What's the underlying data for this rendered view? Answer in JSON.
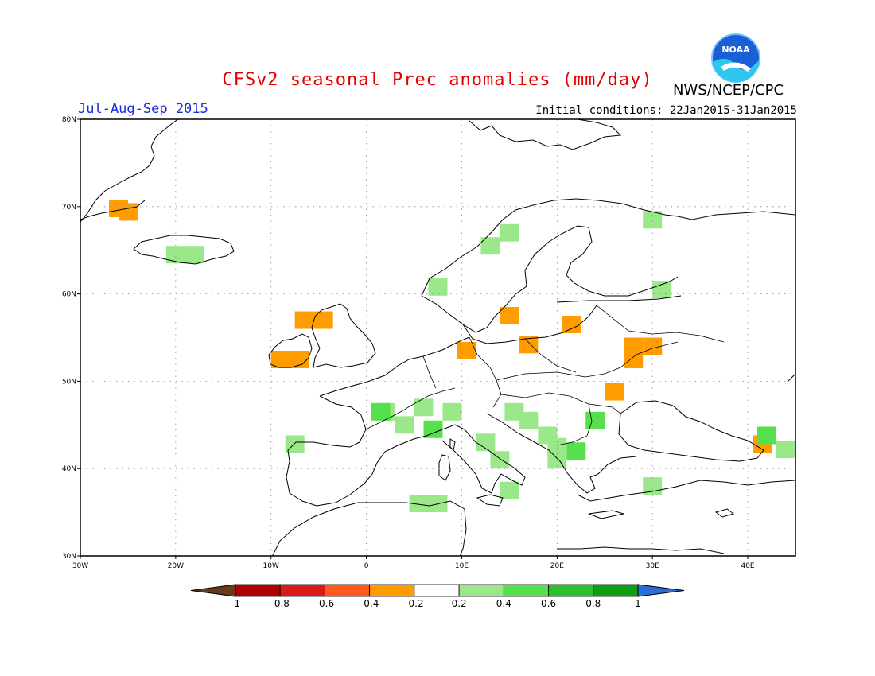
{
  "header": {
    "title": "CFSv2 seasonal Prec anomalies (mm/day)",
    "period": "Jul-Aug-Sep 2015",
    "initial_conditions": "Initial conditions: 22Jan2015-31Jan2015",
    "agency": "NWS/NCEP/CPC",
    "logo_text": "NOAA"
  },
  "map": {
    "lon_range": [
      -30,
      45
    ],
    "lat_range": [
      30,
      80
    ],
    "lon_ticks": [
      {
        "value": -30,
        "label": "30W"
      },
      {
        "value": -20,
        "label": "20W"
      },
      {
        "value": -10,
        "label": "10W"
      },
      {
        "value": 0,
        "label": "0"
      },
      {
        "value": 10,
        "label": "10E"
      },
      {
        "value": 20,
        "label": "20E"
      },
      {
        "value": 30,
        "label": "30E"
      },
      {
        "value": 40,
        "label": "40E"
      }
    ],
    "lat_ticks": [
      {
        "value": 30,
        "label": "30N"
      },
      {
        "value": 40,
        "label": "40N"
      },
      {
        "value": 50,
        "label": "50N"
      },
      {
        "value": 60,
        "label": "60N"
      },
      {
        "value": 70,
        "label": "70N"
      },
      {
        "value": 80,
        "label": "80N"
      }
    ],
    "anomaly_cells": [
      {
        "lon": -26,
        "lat": 69.8,
        "value": -0.35
      },
      {
        "lon": -25,
        "lat": 69.4,
        "value": -0.35
      },
      {
        "lon": -20,
        "lat": 64.5,
        "value": 0.25
      },
      {
        "lon": -18,
        "lat": 64.5,
        "value": 0.25
      },
      {
        "lon": -9,
        "lat": 52.5,
        "value": -0.35
      },
      {
        "lon": -7,
        "lat": 52.5,
        "value": -0.35
      },
      {
        "lon": -6.5,
        "lat": 57,
        "value": -0.35
      },
      {
        "lon": -4.5,
        "lat": 57,
        "value": -0.35
      },
      {
        "lon": 15,
        "lat": 57.5,
        "value": -0.35
      },
      {
        "lon": 10.5,
        "lat": 53.5,
        "value": -0.35
      },
      {
        "lon": 17,
        "lat": 54.2,
        "value": -0.35
      },
      {
        "lon": 21.5,
        "lat": 56.5,
        "value": -0.35
      },
      {
        "lon": 28,
        "lat": 54,
        "value": -0.35
      },
      {
        "lon": 30,
        "lat": 54,
        "value": -0.35
      },
      {
        "lon": 28,
        "lat": 52.5,
        "value": -0.35
      },
      {
        "lon": 26,
        "lat": 48.8,
        "value": -0.35
      },
      {
        "lon": 41.5,
        "lat": 42.8,
        "value": -0.35
      },
      {
        "lon": 13,
        "lat": 65.5,
        "value": 0.25
      },
      {
        "lon": 15,
        "lat": 67,
        "value": 0.25
      },
      {
        "lon": 30,
        "lat": 68.5,
        "value": 0.25
      },
      {
        "lon": 31,
        "lat": 60.5,
        "value": 0.25
      },
      {
        "lon": 7.5,
        "lat": 60.8,
        "value": 0.25
      },
      {
        "lon": 2,
        "lat": 46.5,
        "value": 0.3
      },
      {
        "lon": 1.5,
        "lat": 46.5,
        "value": 0.5
      },
      {
        "lon": 4,
        "lat": 45,
        "value": 0.3
      },
      {
        "lon": 6,
        "lat": 47,
        "value": 0.3
      },
      {
        "lon": 7,
        "lat": 44.5,
        "value": 0.5
      },
      {
        "lon": 9,
        "lat": 46.5,
        "value": 0.3
      },
      {
        "lon": 12.5,
        "lat": 43,
        "value": 0.3
      },
      {
        "lon": 14,
        "lat": 41,
        "value": 0.3
      },
      {
        "lon": 15.5,
        "lat": 46.5,
        "value": 0.3
      },
      {
        "lon": 17,
        "lat": 45.5,
        "value": 0.3
      },
      {
        "lon": 24,
        "lat": 45.5,
        "value": 0.5
      },
      {
        "lon": 22,
        "lat": 42,
        "value": 0.5
      },
      {
        "lon": 20,
        "lat": 41,
        "value": 0.3
      },
      {
        "lon": 20,
        "lat": 42.5,
        "value": 0.3
      },
      {
        "lon": 5.5,
        "lat": 36,
        "value": 0.3
      },
      {
        "lon": 7.5,
        "lat": 36,
        "value": 0.3
      },
      {
        "lon": -7.5,
        "lat": 42.8,
        "value": 0.3
      },
      {
        "lon": 42,
        "lat": 43.8,
        "value": 0.5
      },
      {
        "lon": 44,
        "lat": 42.2,
        "value": 0.3
      },
      {
        "lon": 19,
        "lat": 43.8,
        "value": 0.3
      },
      {
        "lon": 15,
        "lat": 37.5,
        "value": 0.3
      },
      {
        "lon": 30,
        "lat": 38,
        "value": 0.3
      }
    ]
  },
  "colorbar": {
    "labels": [
      "-1",
      "-0.8",
      "-0.6",
      "-0.4",
      "-0.2",
      "0.2",
      "0.4",
      "0.6",
      "0.8",
      "1"
    ],
    "colors": [
      "#6a3a1f",
      "#b00000",
      "#dd1a1a",
      "#ff5a1e",
      "#ff9c00",
      "#ffffff",
      "#9be88a",
      "#55e04c",
      "#2cc02c",
      "#0d9e12",
      "#2b6ed8"
    ]
  }
}
